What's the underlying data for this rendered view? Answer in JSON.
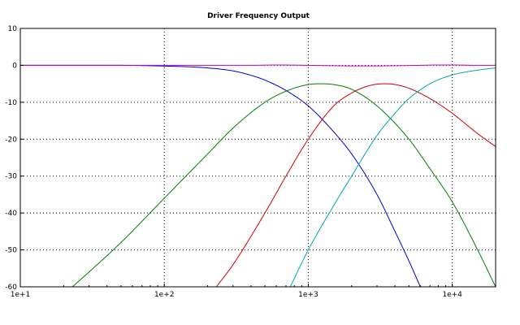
{
  "chart_data": {
    "type": "line",
    "title": "Driver Frequency Output",
    "xlabel": "",
    "ylabel": "",
    "x_scale": "log",
    "xlim": [
      10,
      20000
    ],
    "ylim": [
      -60,
      10
    ],
    "grid": true,
    "x_ticks": [
      {
        "value": 10,
        "label": "1e+1"
      },
      {
        "value": 100,
        "label": "1e+2"
      },
      {
        "value": 1000,
        "label": "1e+3"
      },
      {
        "value": 10000,
        "label": "1e+4"
      }
    ],
    "y_ticks": [
      {
        "value": 10,
        "label": "10"
      },
      {
        "value": 0,
        "label": "0"
      },
      {
        "value": -10,
        "label": "-10"
      },
      {
        "value": -20,
        "label": "-20"
      },
      {
        "value": -30,
        "label": "-30"
      },
      {
        "value": -40,
        "label": "-40"
      },
      {
        "value": -50,
        "label": "-50"
      },
      {
        "value": -60,
        "label": "-60"
      }
    ],
    "series": [
      {
        "color": "#0000cc",
        "x": [
          10,
          50,
          80,
          100,
          150,
          200,
          300,
          400,
          500,
          700,
          1000,
          1500,
          2000,
          3000,
          4000,
          5000,
          6000
        ],
        "y": [
          0,
          0,
          -0.1,
          -0.2,
          -0.4,
          -0.7,
          -1.5,
          -2.7,
          -4.0,
          -6.8,
          -11,
          -18,
          -24,
          -35,
          -45,
          -53,
          -60
        ]
      },
      {
        "color": "#007f00",
        "x": [
          23,
          30,
          50,
          100,
          200,
          300,
          500,
          700,
          1000,
          1200,
          1500,
          2000,
          3000,
          5000,
          7000,
          10000,
          15000,
          20000
        ],
        "y": [
          -60,
          -56,
          -48,
          -36,
          -24,
          -17,
          -10,
          -7,
          -5.2,
          -5.0,
          -5.2,
          -6.5,
          -11,
          -20,
          -28,
          -37,
          -50,
          -60
        ]
      },
      {
        "color": "#cc0000",
        "x": [
          230,
          300,
          500,
          700,
          1000,
          1500,
          2000,
          2500,
          3000,
          3500,
          4000,
          5000,
          7000,
          10000,
          15000,
          20000
        ],
        "y": [
          -60,
          -54,
          -40,
          -30,
          -20,
          -11,
          -7.5,
          -5.8,
          -5.1,
          -5.0,
          -5.2,
          -6.2,
          -9,
          -13,
          -18.5,
          -22
        ]
      },
      {
        "color": "#00aaaa",
        "x": [
          750,
          1000,
          1500,
          2000,
          3000,
          4000,
          5000,
          7000,
          10000,
          15000,
          20000
        ],
        "y": [
          -60,
          -50,
          -38,
          -30,
          -19,
          -13,
          -9,
          -5,
          -2.6,
          -1.3,
          -0.7
        ]
      },
      {
        "color": "#cc00cc",
        "x": [
          10,
          100,
          400,
          600,
          1000,
          1500,
          2000,
          3000,
          4000,
          6000,
          8000,
          10000,
          15000,
          20000
        ],
        "y": [
          0,
          0,
          0,
          0.1,
          0,
          -0.1,
          -0.15,
          -0.15,
          -0.1,
          0,
          0.1,
          0.1,
          0,
          0
        ]
      }
    ]
  }
}
